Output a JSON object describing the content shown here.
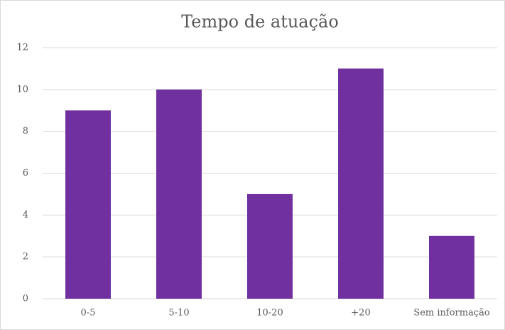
{
  "chart_data": {
    "type": "bar",
    "title": "Tempo de atuação",
    "categories": [
      "0-5",
      "5-10",
      "10-20",
      "+20",
      "Sem informação"
    ],
    "values": [
      9,
      10,
      5,
      11,
      3
    ],
    "color": "#7030a0",
    "ylim": [
      0,
      12
    ],
    "yticks": [
      0,
      2,
      4,
      6,
      8,
      10,
      12
    ],
    "grid": true
  }
}
